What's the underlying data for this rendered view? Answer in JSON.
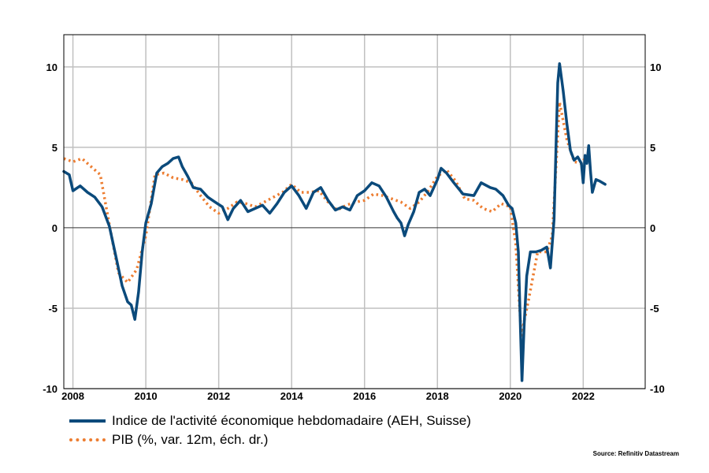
{
  "chart_data": {
    "type": "line",
    "title": "",
    "xlabel": "",
    "ylabel": "",
    "xlim": [
      2007.75,
      2023.7
    ],
    "ylim": [
      -10,
      12
    ],
    "yticks": [
      10,
      5,
      0,
      -5,
      -10
    ],
    "xticks": [
      2008,
      2010,
      2012,
      2014,
      2016,
      2018,
      2020,
      2022
    ],
    "x_tick_labels": [
      "2008",
      "2010",
      "2012",
      "2014",
      "2016",
      "2018",
      "2020",
      "2022"
    ],
    "y_tick_labels": [
      "10",
      "5",
      "0",
      "-5",
      "-10"
    ],
    "y2_tick_labels": [
      "10",
      "5",
      "0",
      "-5",
      "-10"
    ],
    "grid": true,
    "legend_position": "bottom-left",
    "series": [
      {
        "name": "Indice de l'activité économique hebdomadaire (AEH, Suisse)",
        "color": "#0b4a7b",
        "style": "solid",
        "axis": "left",
        "points": [
          [
            2007.75,
            3.5
          ],
          [
            2007.9,
            3.3
          ],
          [
            2008.0,
            2.3
          ],
          [
            2008.2,
            2.6
          ],
          [
            2008.4,
            2.2
          ],
          [
            2008.6,
            1.9
          ],
          [
            2008.8,
            1.3
          ],
          [
            2009.0,
            0.1
          ],
          [
            2009.2,
            -2.0
          ],
          [
            2009.35,
            -3.6
          ],
          [
            2009.5,
            -4.6
          ],
          [
            2009.6,
            -4.8
          ],
          [
            2009.7,
            -5.7
          ],
          [
            2009.8,
            -4.0
          ],
          [
            2009.9,
            -1.5
          ],
          [
            2010.0,
            0.3
          ],
          [
            2010.15,
            1.5
          ],
          [
            2010.3,
            3.4
          ],
          [
            2010.45,
            3.8
          ],
          [
            2010.6,
            4.0
          ],
          [
            2010.75,
            4.3
          ],
          [
            2010.9,
            4.4
          ],
          [
            2011.0,
            3.8
          ],
          [
            2011.15,
            3.2
          ],
          [
            2011.3,
            2.5
          ],
          [
            2011.5,
            2.4
          ],
          [
            2011.7,
            1.9
          ],
          [
            2011.9,
            1.6
          ],
          [
            2012.1,
            1.3
          ],
          [
            2012.25,
            0.5
          ],
          [
            2012.4,
            1.2
          ],
          [
            2012.6,
            1.7
          ],
          [
            2012.8,
            1.0
          ],
          [
            2013.0,
            1.2
          ],
          [
            2013.2,
            1.4
          ],
          [
            2013.4,
            0.9
          ],
          [
            2013.6,
            1.5
          ],
          [
            2013.8,
            2.2
          ],
          [
            2014.0,
            2.6
          ],
          [
            2014.2,
            2.0
          ],
          [
            2014.4,
            1.2
          ],
          [
            2014.6,
            2.2
          ],
          [
            2014.8,
            2.5
          ],
          [
            2015.0,
            1.7
          ],
          [
            2015.2,
            1.1
          ],
          [
            2015.4,
            1.3
          ],
          [
            2015.6,
            1.1
          ],
          [
            2015.8,
            2.0
          ],
          [
            2016.0,
            2.3
          ],
          [
            2016.2,
            2.8
          ],
          [
            2016.4,
            2.6
          ],
          [
            2016.6,
            1.9
          ],
          [
            2016.8,
            1.0
          ],
          [
            2016.9,
            0.6
          ],
          [
            2017.0,
            0.3
          ],
          [
            2017.1,
            -0.5
          ],
          [
            2017.2,
            0.2
          ],
          [
            2017.35,
            1.0
          ],
          [
            2017.5,
            2.2
          ],
          [
            2017.65,
            2.4
          ],
          [
            2017.8,
            2.0
          ],
          [
            2018.0,
            3.0
          ],
          [
            2018.1,
            3.7
          ],
          [
            2018.25,
            3.4
          ],
          [
            2018.45,
            2.8
          ],
          [
            2018.7,
            2.1
          ],
          [
            2019.0,
            2.0
          ],
          [
            2019.2,
            2.8
          ],
          [
            2019.45,
            2.5
          ],
          [
            2019.6,
            2.4
          ],
          [
            2019.8,
            2.0
          ],
          [
            2019.95,
            1.4
          ],
          [
            2020.05,
            1.2
          ],
          [
            2020.15,
            0.3
          ],
          [
            2020.22,
            -1.5
          ],
          [
            2020.28,
            -6.5
          ],
          [
            2020.32,
            -9.5
          ],
          [
            2020.38,
            -6.0
          ],
          [
            2020.45,
            -3.0
          ],
          [
            2020.55,
            -1.5
          ],
          [
            2020.7,
            -1.5
          ],
          [
            2020.85,
            -1.4
          ],
          [
            2021.0,
            -1.2
          ],
          [
            2021.1,
            -2.5
          ],
          [
            2021.2,
            0.5
          ],
          [
            2021.3,
            9.0
          ],
          [
            2021.35,
            10.2
          ],
          [
            2021.45,
            8.5
          ],
          [
            2021.55,
            6.5
          ],
          [
            2021.65,
            4.8
          ],
          [
            2021.75,
            4.2
          ],
          [
            2021.85,
            4.4
          ],
          [
            2021.95,
            4.0
          ],
          [
            2022.0,
            2.8
          ],
          [
            2022.05,
            4.5
          ],
          [
            2022.1,
            4.0
          ],
          [
            2022.15,
            5.1
          ],
          [
            2022.2,
            3.5
          ],
          [
            2022.25,
            2.2
          ],
          [
            2022.35,
            3.0
          ],
          [
            2022.45,
            2.9
          ],
          [
            2022.6,
            2.7
          ]
        ]
      },
      {
        "name": "PIB (%, var. 12m, éch. dr.)",
        "color": "#ed7d31",
        "style": "dotted",
        "axis": "right",
        "points": [
          [
            2007.75,
            4.3
          ],
          [
            2008.0,
            4.1
          ],
          [
            2008.25,
            4.3
          ],
          [
            2008.5,
            3.8
          ],
          [
            2008.75,
            3.3
          ],
          [
            2009.0,
            0.2
          ],
          [
            2009.25,
            -2.8
          ],
          [
            2009.5,
            -3.4
          ],
          [
            2009.75,
            -2.6
          ],
          [
            2010.0,
            -0.5
          ],
          [
            2010.25,
            3.3
          ],
          [
            2010.5,
            3.4
          ],
          [
            2010.75,
            3.1
          ],
          [
            2011.0,
            3.0
          ],
          [
            2011.25,
            2.8
          ],
          [
            2011.5,
            2.0
          ],
          [
            2011.75,
            1.3
          ],
          [
            2012.0,
            0.9
          ],
          [
            2012.25,
            1.2
          ],
          [
            2012.5,
            1.6
          ],
          [
            2012.75,
            1.5
          ],
          [
            2013.0,
            1.3
          ],
          [
            2013.25,
            1.6
          ],
          [
            2013.5,
            1.9
          ],
          [
            2013.75,
            2.2
          ],
          [
            2014.0,
            2.7
          ],
          [
            2014.25,
            2.2
          ],
          [
            2014.5,
            2.2
          ],
          [
            2014.75,
            2.3
          ],
          [
            2015.0,
            1.6
          ],
          [
            2015.25,
            1.1
          ],
          [
            2015.5,
            1.4
          ],
          [
            2015.75,
            1.6
          ],
          [
            2016.0,
            1.7
          ],
          [
            2016.25,
            2.1
          ],
          [
            2016.5,
            2.0
          ],
          [
            2016.75,
            1.8
          ],
          [
            2017.0,
            1.6
          ],
          [
            2017.25,
            1.2
          ],
          [
            2017.5,
            1.6
          ],
          [
            2017.75,
            2.3
          ],
          [
            2018.0,
            3.2
          ],
          [
            2018.25,
            3.6
          ],
          [
            2018.5,
            2.9
          ],
          [
            2018.75,
            1.8
          ],
          [
            2019.0,
            1.7
          ],
          [
            2019.25,
            1.2
          ],
          [
            2019.5,
            1.0
          ],
          [
            2019.75,
            1.5
          ],
          [
            2020.0,
            1.3
          ],
          [
            2020.15,
            -1.0
          ],
          [
            2020.3,
            -6.7
          ],
          [
            2020.5,
            -4.5
          ],
          [
            2020.75,
            -1.5
          ],
          [
            2021.0,
            -1.5
          ],
          [
            2021.15,
            -0.5
          ],
          [
            2021.35,
            7.8
          ],
          [
            2021.55,
            5.5
          ],
          [
            2021.75,
            4.1
          ],
          [
            2021.95,
            4.0
          ],
          [
            2022.1,
            4.5
          ]
        ]
      }
    ]
  },
  "source": "Source: Refinitiv Datastream"
}
